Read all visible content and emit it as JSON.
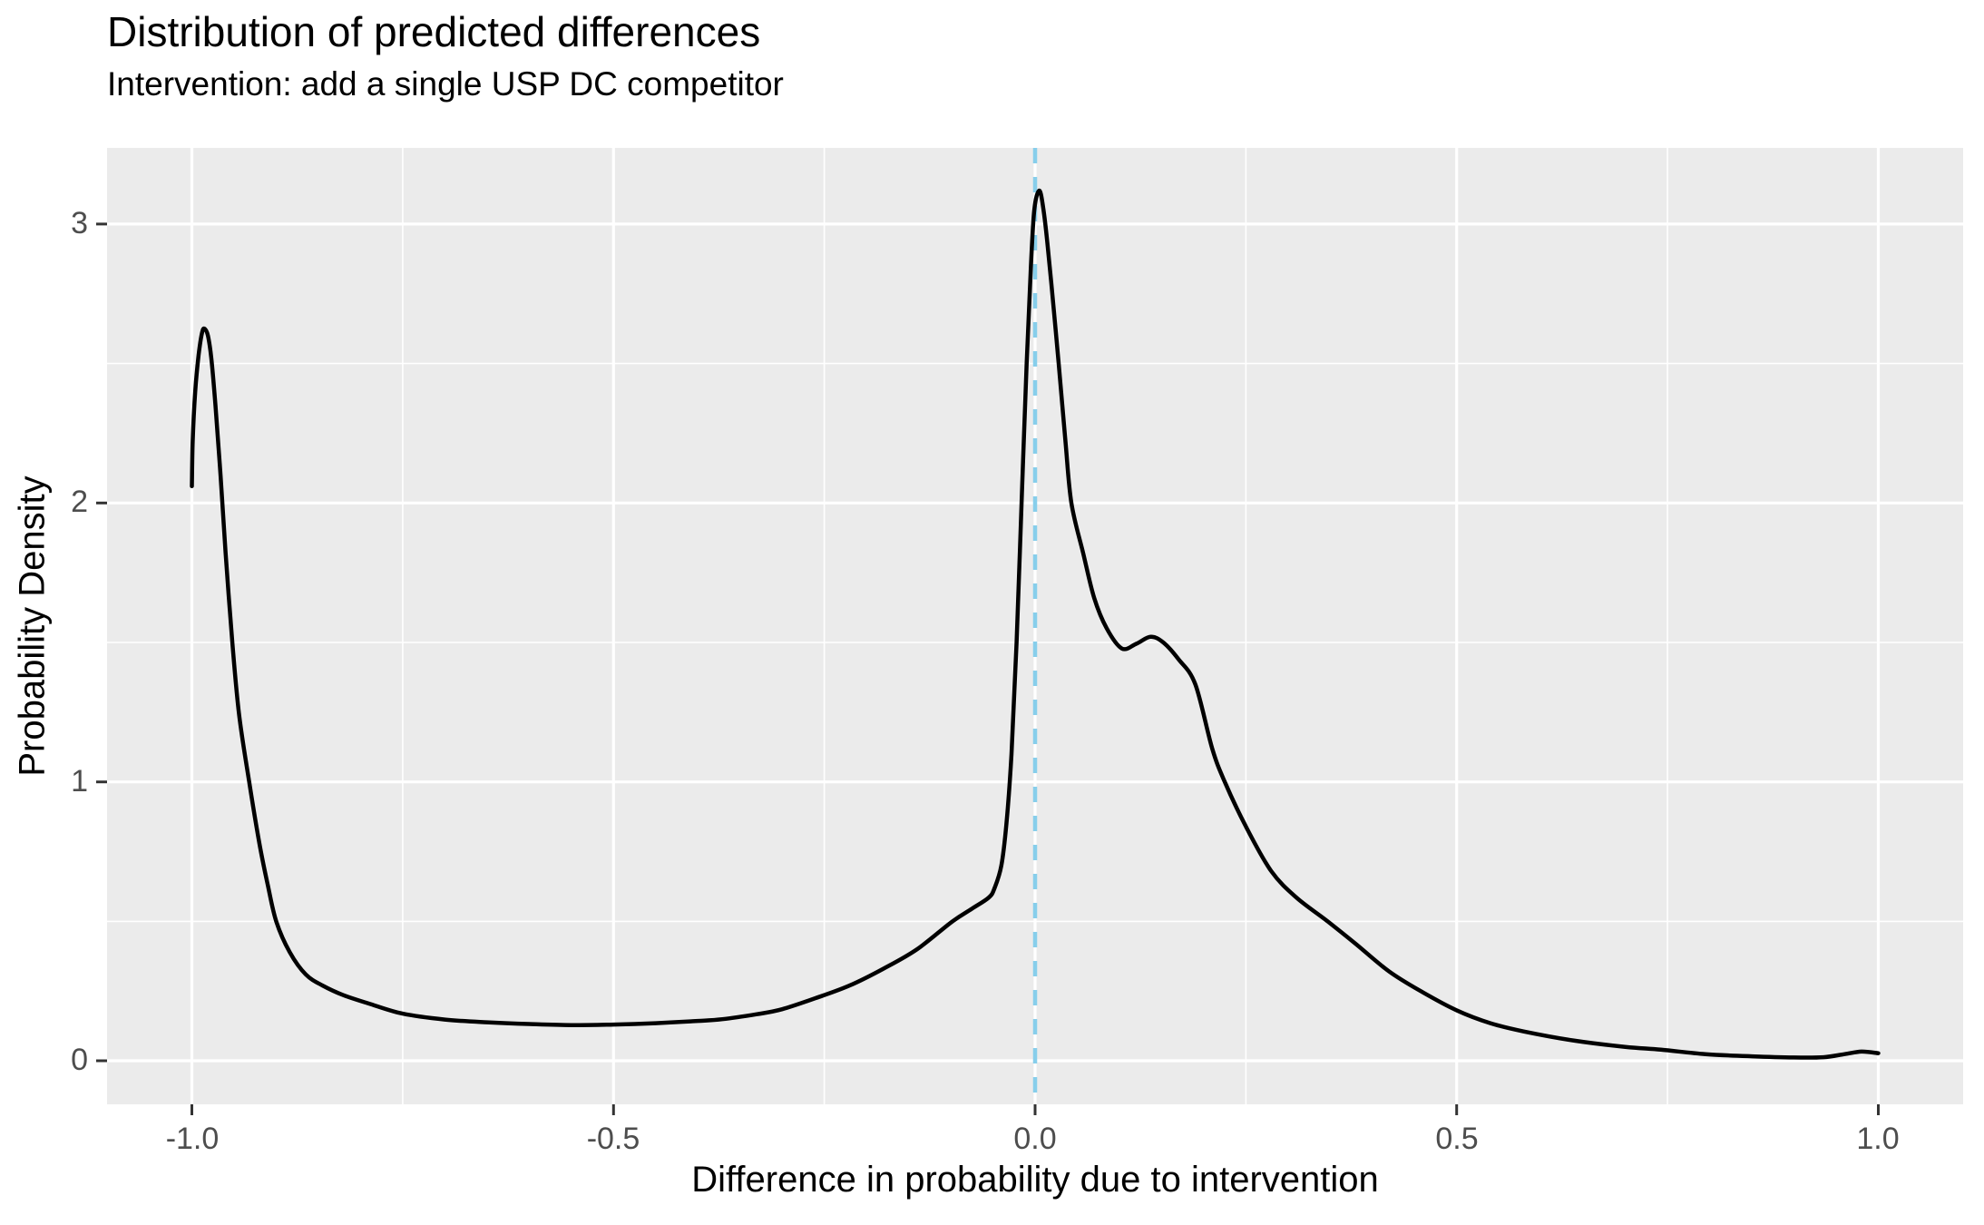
{
  "chart_data": {
    "type": "line",
    "title": "Distribution of predicted differences",
    "subtitle": "Intervention: add a single USP DC competitor",
    "xlabel": "Difference in probability due to intervention",
    "ylabel": "Probability Density",
    "xlim": [
      -1.1006,
      1.1006
    ],
    "ylim": [
      -0.156,
      3.273
    ],
    "x_ticks": [
      -1.0,
      -0.5,
      0.0,
      0.5,
      1.0
    ],
    "x_tick_labels": [
      "-1.0",
      "-0.5",
      "0.0",
      "0.5",
      "1.0"
    ],
    "y_ticks": [
      0,
      1,
      2,
      3
    ],
    "y_tick_labels": [
      "0",
      "1",
      "2",
      "3"
    ],
    "x_minor_ticks": [
      -0.75,
      -0.25,
      0.25,
      0.75
    ],
    "y_minor_ticks": [
      0.5,
      1.5,
      2.5
    ],
    "grid": true,
    "legend_position": "none",
    "panel_bg": "#EBEBEB",
    "gridline_color": "#FFFFFF",
    "tick_mark_color": "#333333",
    "tick_label_color": "#4D4D4D",
    "vline": {
      "x": 0,
      "color": "#87CEEB",
      "style": "dashed",
      "width": 4.5
    },
    "series": [
      {
        "name": "predicted-difference-density",
        "color": "#000000",
        "width": 4.5,
        "points": [
          [
            -1.0,
            2.06
          ],
          [
            -0.999,
            2.22
          ],
          [
            -0.996,
            2.4
          ],
          [
            -0.992,
            2.53
          ],
          [
            -0.988,
            2.61
          ],
          [
            -0.985,
            2.625
          ],
          [
            -0.981,
            2.6
          ],
          [
            -0.977,
            2.52
          ],
          [
            -0.972,
            2.35
          ],
          [
            -0.966,
            2.1
          ],
          [
            -0.96,
            1.82
          ],
          [
            -0.952,
            1.5
          ],
          [
            -0.944,
            1.24
          ],
          [
            -0.932,
            1.0
          ],
          [
            -0.92,
            0.78
          ],
          [
            -0.91,
            0.63
          ],
          [
            -0.9,
            0.5
          ],
          [
            -0.884,
            0.39
          ],
          [
            -0.865,
            0.31
          ],
          [
            -0.845,
            0.27
          ],
          [
            -0.82,
            0.235
          ],
          [
            -0.79,
            0.205
          ],
          [
            -0.75,
            0.169
          ],
          [
            -0.7,
            0.148
          ],
          [
            -0.65,
            0.138
          ],
          [
            -0.6,
            0.132
          ],
          [
            -0.55,
            0.128
          ],
          [
            -0.5,
            0.13
          ],
          [
            -0.45,
            0.135
          ],
          [
            -0.4,
            0.143
          ],
          [
            -0.371,
            0.149
          ],
          [
            -0.33,
            0.167
          ],
          [
            -0.3,
            0.185
          ],
          [
            -0.26,
            0.225
          ],
          [
            -0.22,
            0.27
          ],
          [
            -0.18,
            0.33
          ],
          [
            -0.14,
            0.4
          ],
          [
            -0.098,
            0.5
          ],
          [
            -0.075,
            0.545
          ],
          [
            -0.055,
            0.585
          ],
          [
            -0.048,
            0.62
          ],
          [
            -0.04,
            0.7
          ],
          [
            -0.034,
            0.85
          ],
          [
            -0.028,
            1.1
          ],
          [
            -0.022,
            1.5
          ],
          [
            -0.016,
            2.0
          ],
          [
            -0.01,
            2.5
          ],
          [
            -0.005,
            2.85
          ],
          [
            -0.001,
            3.05
          ],
          [
            0.005,
            3.12
          ],
          [
            0.01,
            3.05
          ],
          [
            0.015,
            2.92
          ],
          [
            0.022,
            2.7
          ],
          [
            0.028,
            2.5
          ],
          [
            0.036,
            2.22
          ],
          [
            0.043,
            2.0
          ],
          [
            0.057,
            1.82
          ],
          [
            0.07,
            1.66
          ],
          [
            0.085,
            1.55
          ],
          [
            0.103,
            1.478
          ],
          [
            0.12,
            1.495
          ],
          [
            0.137,
            1.52
          ],
          [
            0.152,
            1.5
          ],
          [
            0.17,
            1.44
          ],
          [
            0.19,
            1.35
          ],
          [
            0.21,
            1.12
          ],
          [
            0.225,
            1.0
          ],
          [
            0.25,
            0.84
          ],
          [
            0.28,
            0.68
          ],
          [
            0.31,
            0.585
          ],
          [
            0.347,
            0.5
          ],
          [
            0.38,
            0.42
          ],
          [
            0.42,
            0.32
          ],
          [
            0.46,
            0.245
          ],
          [
            0.5,
            0.181
          ],
          [
            0.54,
            0.135
          ],
          [
            0.58,
            0.105
          ],
          [
            0.64,
            0.072
          ],
          [
            0.7,
            0.05
          ],
          [
            0.742,
            0.04
          ],
          [
            0.795,
            0.024
          ],
          [
            0.85,
            0.016
          ],
          [
            0.9,
            0.012
          ],
          [
            0.935,
            0.013
          ],
          [
            0.96,
            0.024
          ],
          [
            0.98,
            0.033
          ],
          [
            1.0,
            0.027
          ]
        ]
      }
    ]
  }
}
